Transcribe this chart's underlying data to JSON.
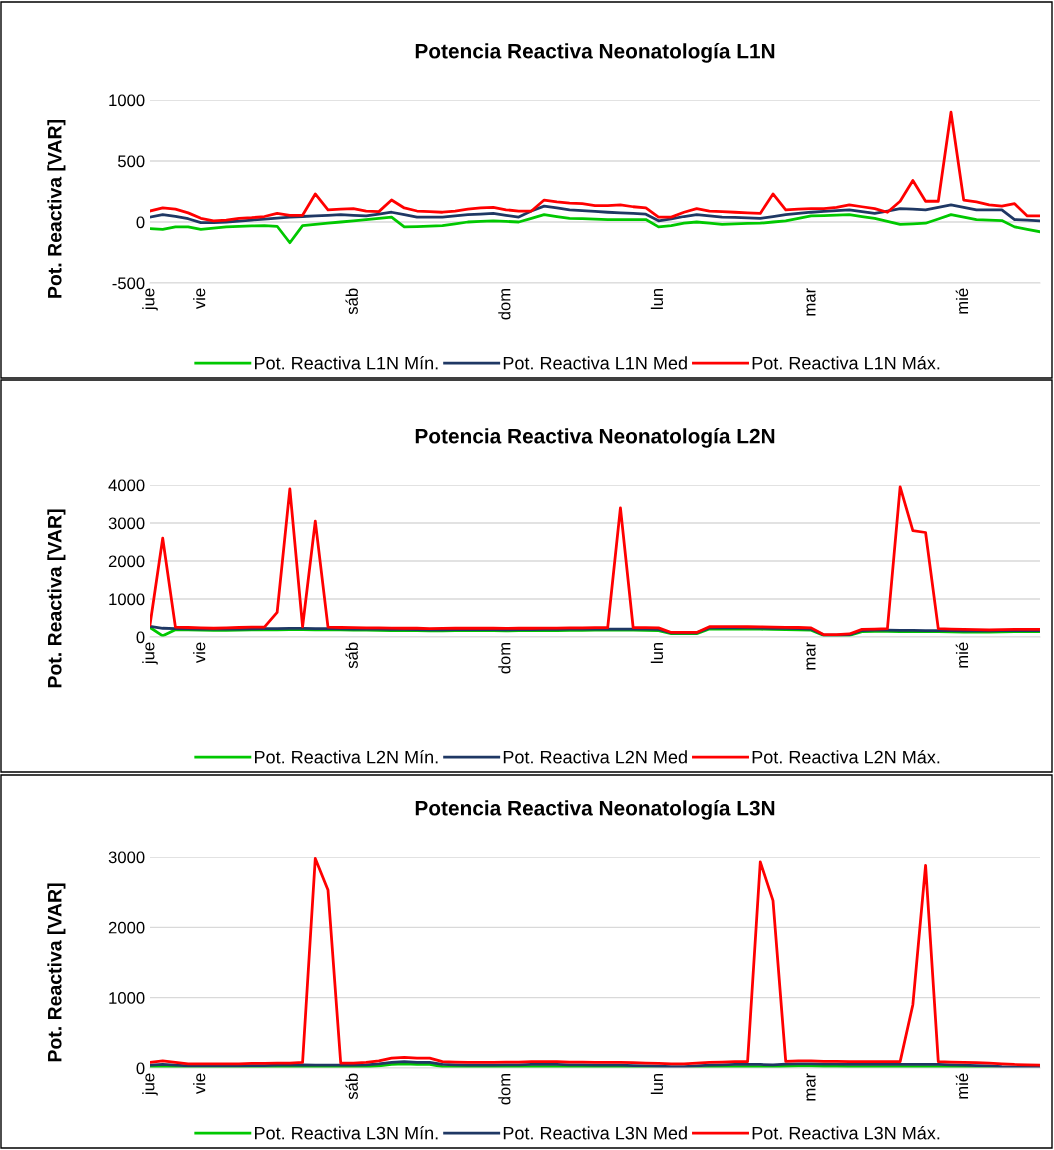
{
  "chart_data": [
    {
      "type": "line",
      "title": "Potencia Reactiva Neonatología L1N",
      "ylabel": "Pot. Reactiva [VAR]",
      "categories": [
        "jue",
        null,
        null,
        null,
        "vie",
        null,
        null,
        null,
        null,
        null,
        null,
        null,
        null,
        null,
        null,
        null,
        "sáb",
        null,
        null,
        null,
        null,
        null,
        null,
        null,
        null,
        null,
        null,
        null,
        "dom",
        null,
        null,
        null,
        null,
        null,
        null,
        null,
        null,
        null,
        null,
        null,
        "lun",
        null,
        null,
        null,
        null,
        null,
        null,
        null,
        null,
        null,
        null,
        null,
        "mar",
        null,
        null,
        null,
        null,
        null,
        null,
        null,
        null,
        null,
        null,
        null,
        "mié",
        null,
        null,
        null,
        null,
        null,
        null
      ],
      "ylim": [
        -500,
        1000
      ],
      "yticks": [
        -500,
        0,
        500,
        1000
      ],
      "grid": "y",
      "legend": "bottom",
      "series": [
        {
          "name": "Pot. Reactiva L1N Mín.",
          "color": "#00c800",
          "values": [
            -55,
            -60,
            -40,
            -40,
            -60,
            -50,
            -40,
            -36,
            -32,
            -30,
            -35,
            -170,
            -30,
            -20,
            -10,
            0,
            10,
            20,
            30,
            40,
            -40,
            -37,
            -33,
            -30,
            -15,
            0,
            5,
            10,
            5,
            0,
            30,
            60,
            45,
            30,
            27,
            23,
            20,
            20,
            20,
            20,
            -40,
            -30,
            -10,
            0,
            -10,
            -20,
            -15,
            -12,
            -10,
            0,
            10,
            30,
            50,
            53,
            57,
            60,
            45,
            30,
            5,
            -20,
            -15,
            -10,
            25,
            60,
            40,
            20,
            15,
            12,
            -40,
            -60,
            -80
          ]
        },
        {
          "name": "Pot. Reactiva L1N Med",
          "color": "#1f3864",
          "values": [
            40,
            60,
            47,
            27,
            -5,
            -5,
            0,
            8,
            16,
            24,
            32,
            40,
            45,
            50,
            55,
            60,
            55,
            50,
            65,
            80,
            60,
            40,
            40,
            40,
            50,
            60,
            65,
            70,
            55,
            40,
            90,
            130,
            115,
            100,
            93,
            87,
            80,
            75,
            70,
            64,
            10,
            25,
            45,
            60,
            50,
            40,
            37,
            33,
            30,
            45,
            60,
            70,
            80,
            87,
            93,
            100,
            85,
            70,
            90,
            110,
            105,
            100,
            120,
            140,
            120,
            100,
            100,
            100,
            20,
            15,
            10
          ]
        },
        {
          "name": "Pot. Reactiva L1N Máx.",
          "color": "#ff0000",
          "values": [
            90,
            115,
            105,
            75,
            30,
            10,
            15,
            30,
            35,
            45,
            70,
            55,
            55,
            230,
            100,
            105,
            110,
            90,
            85,
            180,
            115,
            90,
            85,
            80,
            90,
            105,
            115,
            120,
            100,
            90,
            90,
            180,
            165,
            155,
            150,
            135,
            135,
            140,
            125,
            115,
            40,
            40,
            80,
            110,
            90,
            85,
            80,
            75,
            70,
            230,
            100,
            105,
            110,
            110,
            120,
            140,
            125,
            110,
            80,
            170,
            340,
            170,
            170,
            900,
            180,
            165,
            140,
            130,
            150,
            50,
            50
          ]
        }
      ]
    },
    {
      "type": "line",
      "title": "Potencia Reactiva Neonatología L2N",
      "ylabel": "Pot. Reactiva [VAR]",
      "categories": [
        "jue",
        null,
        null,
        null,
        "vie",
        null,
        null,
        null,
        null,
        null,
        null,
        null,
        null,
        null,
        null,
        null,
        "sáb",
        null,
        null,
        null,
        null,
        null,
        null,
        null,
        null,
        null,
        null,
        null,
        "dom",
        null,
        null,
        null,
        null,
        null,
        null,
        null,
        null,
        null,
        null,
        null,
        "lun",
        null,
        null,
        null,
        null,
        null,
        null,
        null,
        null,
        null,
        null,
        null,
        "mar",
        null,
        null,
        null,
        null,
        null,
        null,
        null,
        null,
        null,
        null,
        null,
        "mié",
        null,
        null,
        null,
        null,
        null,
        null
      ],
      "ylim": [
        0,
        4000
      ],
      "yticks": [
        0,
        1000,
        2000,
        3000,
        4000
      ],
      "grid": "y",
      "legend": "bottom",
      "series": [
        {
          "name": "Pot. Reactiva L2N Mín.",
          "color": "#00c800",
          "values": [
            250,
            30,
            190,
            185,
            180,
            175,
            175,
            180,
            185,
            190,
            190,
            195,
            195,
            190,
            190,
            185,
            180,
            180,
            175,
            170,
            170,
            165,
            160,
            160,
            165,
            165,
            165,
            165,
            160,
            165,
            165,
            170,
            170,
            175,
            175,
            180,
            180,
            180,
            180,
            175,
            170,
            90,
            90,
            90,
            210,
            210,
            210,
            210,
            205,
            200,
            195,
            190,
            180,
            40,
            40,
            45,
            140,
            150,
            150,
            145,
            145,
            140,
            140,
            135,
            130,
            130,
            130,
            135,
            140,
            140,
            140
          ]
        },
        {
          "name": "Pot. Reactiva L2N Med",
          "color": "#1f3864",
          "values": [
            280,
            230,
            220,
            215,
            210,
            205,
            205,
            210,
            215,
            220,
            220,
            225,
            225,
            220,
            220,
            215,
            210,
            210,
            205,
            200,
            200,
            195,
            190,
            190,
            195,
            195,
            195,
            195,
            190,
            195,
            195,
            200,
            200,
            205,
            205,
            210,
            210,
            210,
            210,
            205,
            200,
            110,
            110,
            110,
            240,
            240,
            240,
            240,
            235,
            230,
            225,
            220,
            210,
            50,
            50,
            60,
            170,
            180,
            180,
            175,
            175,
            170,
            170,
            165,
            160,
            160,
            160,
            165,
            170,
            170,
            170
          ]
        },
        {
          "name": "Pot. Reactiva L2N Máx.",
          "color": "#ff0000",
          "values": [
            320,
            2600,
            260,
            250,
            240,
            230,
            240,
            250,
            260,
            260,
            650,
            3900,
            270,
            3050,
            260,
            250,
            245,
            240,
            240,
            235,
            230,
            230,
            220,
            225,
            230,
            230,
            230,
            230,
            225,
            230,
            230,
            235,
            235,
            240,
            240,
            245,
            250,
            3400,
            250,
            245,
            240,
            120,
            120,
            120,
            270,
            275,
            275,
            270,
            265,
            260,
            255,
            250,
            240,
            60,
            60,
            80,
            200,
            210,
            220,
            3950,
            2800,
            2750,
            220,
            210,
            200,
            195,
            190,
            195,
            200,
            200,
            200
          ]
        }
      ]
    },
    {
      "type": "line",
      "title": "Potencia Reactiva Neonatología L3N",
      "ylabel": "Pot. Reactiva [VAR]",
      "categories": [
        "jue",
        null,
        null,
        null,
        "vie",
        null,
        null,
        null,
        null,
        null,
        null,
        null,
        null,
        null,
        null,
        null,
        "sáb",
        null,
        null,
        null,
        null,
        null,
        null,
        null,
        null,
        null,
        null,
        null,
        "dom",
        null,
        null,
        null,
        null,
        null,
        null,
        null,
        null,
        null,
        null,
        null,
        "lun",
        null,
        null,
        null,
        null,
        null,
        null,
        null,
        null,
        null,
        null,
        null,
        "mar",
        null,
        null,
        null,
        null,
        null,
        null,
        null,
        null,
        null,
        null,
        null,
        "mié",
        null,
        null,
        null,
        null,
        null,
        null
      ],
      "ylim": [
        0,
        3000
      ],
      "yticks": [
        0,
        1000,
        2000,
        3000
      ],
      "grid": "y",
      "legend": "bottom",
      "series": [
        {
          "name": "Pot. Reactiva L3N Mín.",
          "color": "#00c800",
          "values": [
            10,
            20,
            10,
            0,
            0,
            0,
            0,
            0,
            5,
            5,
            10,
            10,
            15,
            10,
            10,
            10,
            10,
            15,
            30,
            50,
            60,
            50,
            50,
            20,
            15,
            10,
            10,
            10,
            15,
            15,
            20,
            20,
            20,
            15,
            15,
            10,
            10,
            10,
            5,
            0,
            0,
            0,
            0,
            0,
            10,
            15,
            20,
            20,
            20,
            15,
            25,
            30,
            30,
            25,
            25,
            20,
            20,
            20,
            20,
            20,
            20,
            20,
            20,
            15,
            10,
            5,
            0,
            0,
            null,
            null,
            null
          ]
        },
        {
          "name": "Pot. Reactiva L3N Med",
          "color": "#1f3864",
          "values": [
            40,
            50,
            40,
            30,
            30,
            30,
            30,
            30,
            35,
            35,
            40,
            40,
            45,
            40,
            40,
            40,
            40,
            45,
            60,
            80,
            90,
            80,
            80,
            50,
            45,
            40,
            40,
            40,
            45,
            45,
            50,
            50,
            50,
            45,
            45,
            40,
            40,
            40,
            35,
            30,
            25,
            20,
            20,
            30,
            40,
            45,
            50,
            50,
            50,
            45,
            55,
            60,
            60,
            55,
            55,
            50,
            50,
            50,
            50,
            50,
            50,
            50,
            50,
            45,
            40,
            35,
            30,
            20,
            15,
            10,
            10
          ]
        },
        {
          "name": "Pot. Reactiva L3N Máx.",
          "color": "#ff0000",
          "values": [
            80,
            100,
            80,
            60,
            60,
            60,
            60,
            60,
            65,
            65,
            70,
            70,
            80,
            2980,
            2530,
            70,
            70,
            80,
            100,
            140,
            150,
            140,
            140,
            90,
            85,
            80,
            80,
            80,
            85,
            85,
            90,
            90,
            90,
            85,
            85,
            80,
            80,
            80,
            75,
            70,
            65,
            60,
            60,
            70,
            80,
            85,
            90,
            90,
            2930,
            2380,
            95,
            100,
            100,
            95,
            95,
            90,
            90,
            90,
            90,
            90,
            900,
            2880,
            90,
            85,
            80,
            75,
            70,
            60,
            50,
            45,
            40
          ]
        }
      ]
    }
  ]
}
